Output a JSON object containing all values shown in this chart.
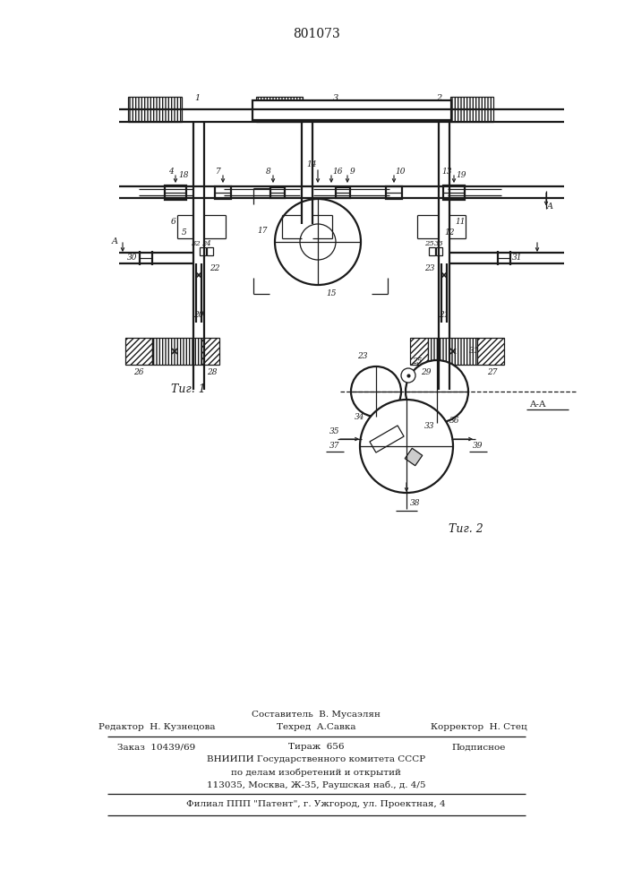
{
  "patent_number": "801073",
  "fig1_label": "Τиг. 1",
  "fig2_label": "Τиг. 2",
  "aa_label": "A-A",
  "editor_line": "Редактор  Н. Кузнецова",
  "composer_line": "Составитель  В. Мусаэлян",
  "techred_line": "Техред  А.Савка",
  "corrector_line": "Корректор  Н. Стец",
  "order_line": "Заказ  10439/69",
  "tirazh_line": "Тираж  656",
  "podpisnoe_line": "Подписное",
  "vniip_line": "ВНИИПИ Государственного комитета СССР",
  "podel_line": "по делам изобретений и открытий",
  "address_line": "113035, Москва, Ж-35, Раушская наб., д. 4/5",
  "filial_line": "Филиал ППП \"Патент\", г. Ужгород, ул. Проектная, 4",
  "bg_color": "#ffffff",
  "line_color": "#1a1a1a",
  "lw": 0.9,
  "lw2": 1.6
}
